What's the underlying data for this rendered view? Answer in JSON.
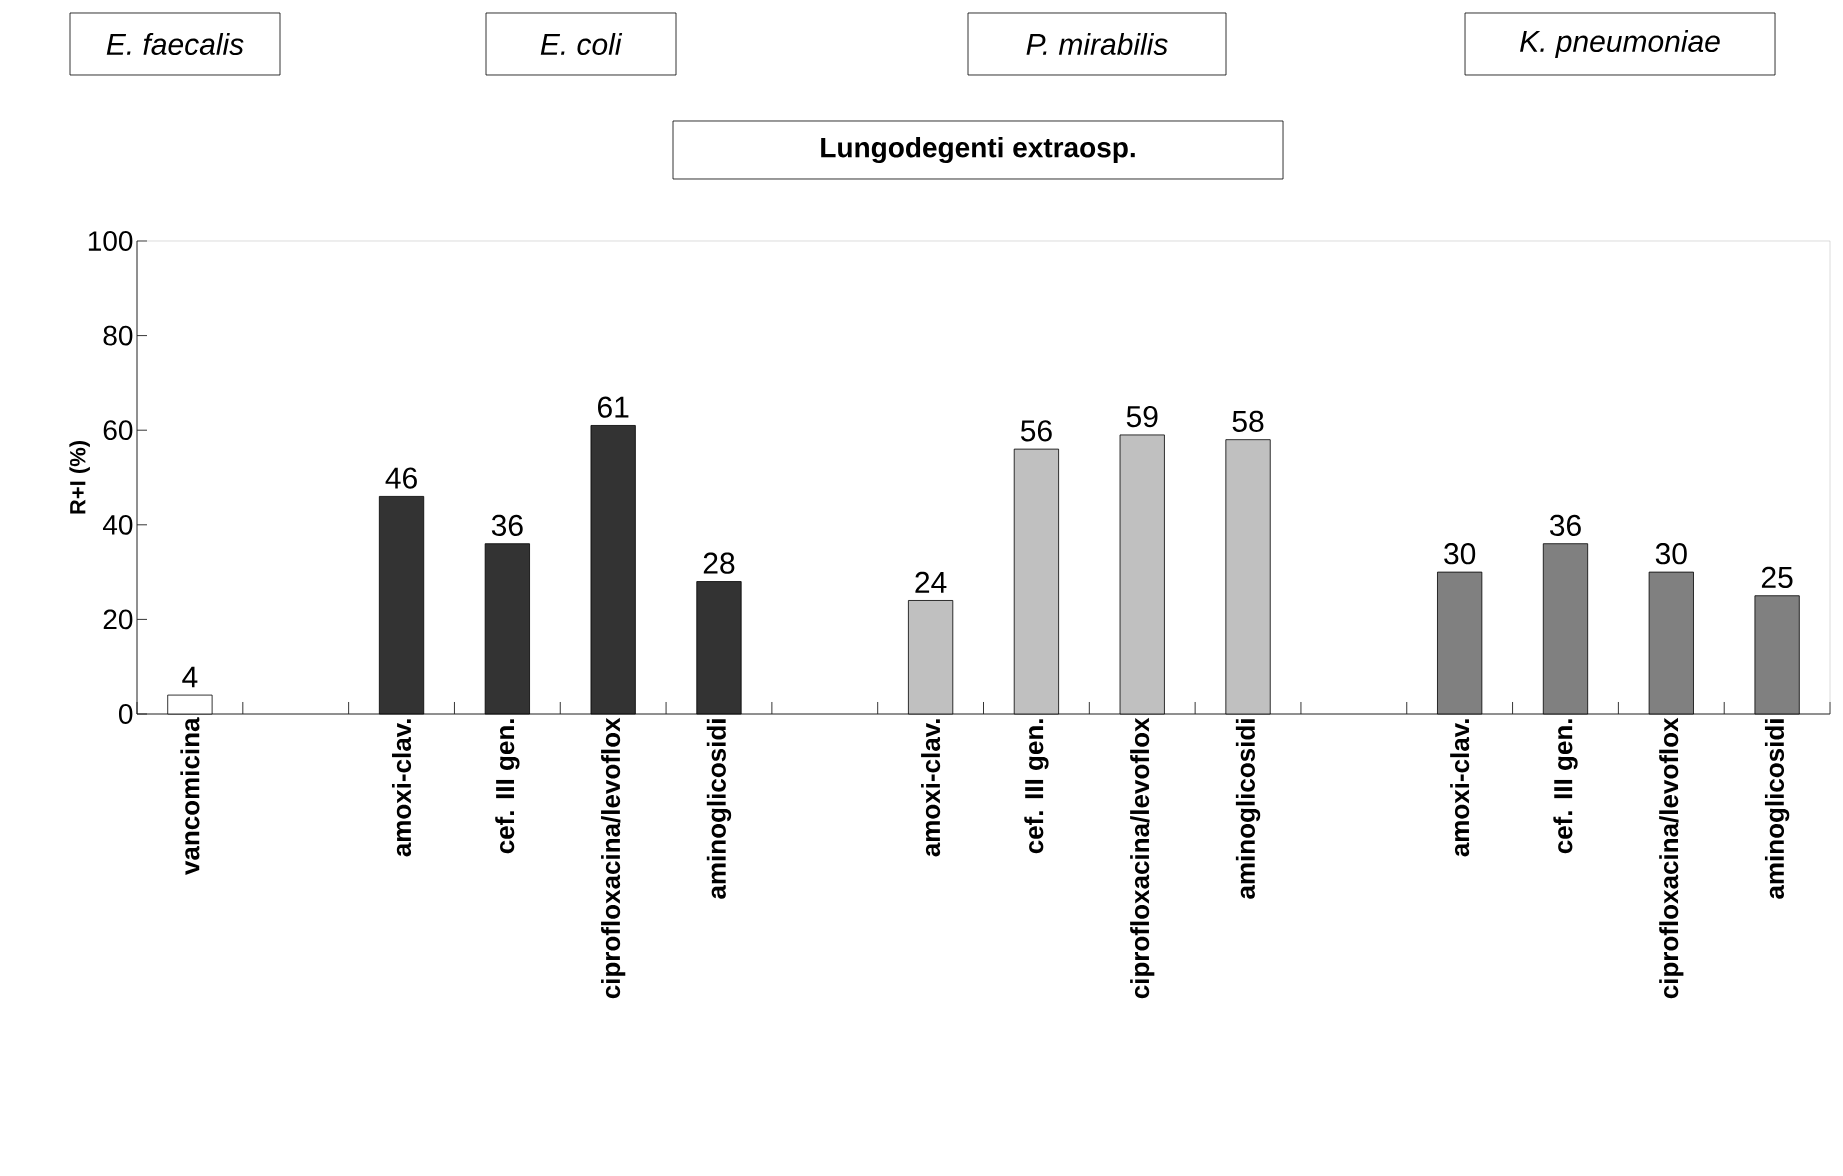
{
  "chart_data": {
    "type": "bar",
    "title": "Lungodegenti extraosp.",
    "ylabel": "R+I (%)",
    "categories": [
      "vancomicina",
      null,
      "amoxi-clav.",
      "cef. III gen.",
      "ciprofloxacina/levoflox",
      "aminoglicosidi",
      null,
      "amoxi-clav.",
      "cef. III gen.",
      "ciprofloxacina/levoflox",
      "aminoglicosidi",
      null,
      "amoxi-clav.",
      "cef. III gen.",
      "ciprofloxacina/levoflox",
      "aminoglicosidi"
    ],
    "series": [
      {
        "color": "#ffffff",
        "values": [
          4,
          null,
          null,
          null,
          null,
          null,
          null,
          null,
          null,
          null,
          null,
          null,
          null,
          null,
          null,
          null
        ]
      },
      {
        "color": "#333333",
        "values": [
          null,
          null,
          46,
          36,
          61,
          28,
          null,
          null,
          null,
          null,
          null,
          null,
          null,
          null,
          null,
          null
        ]
      },
      {
        "color": "#c0c0c0",
        "values": [
          null,
          null,
          null,
          null,
          null,
          null,
          null,
          24,
          56,
          59,
          58,
          null,
          null,
          null,
          null,
          null
        ]
      },
      {
        "color": "#808080",
        "values": [
          null,
          null,
          null,
          null,
          null,
          null,
          null,
          null,
          null,
          null,
          null,
          null,
          30,
          36,
          30,
          25
        ]
      }
    ],
    "annotations": [
      "*E. faecalis*",
      "*E. coli*",
      "*P. mirabilis*",
      "*K. pneumoniae*"
    ],
    "data_labels": true,
    "ylim": [
      0,
      100
    ],
    "yticks": [
      0,
      20,
      40,
      60,
      80,
      100
    ],
    "grid": false
  }
}
